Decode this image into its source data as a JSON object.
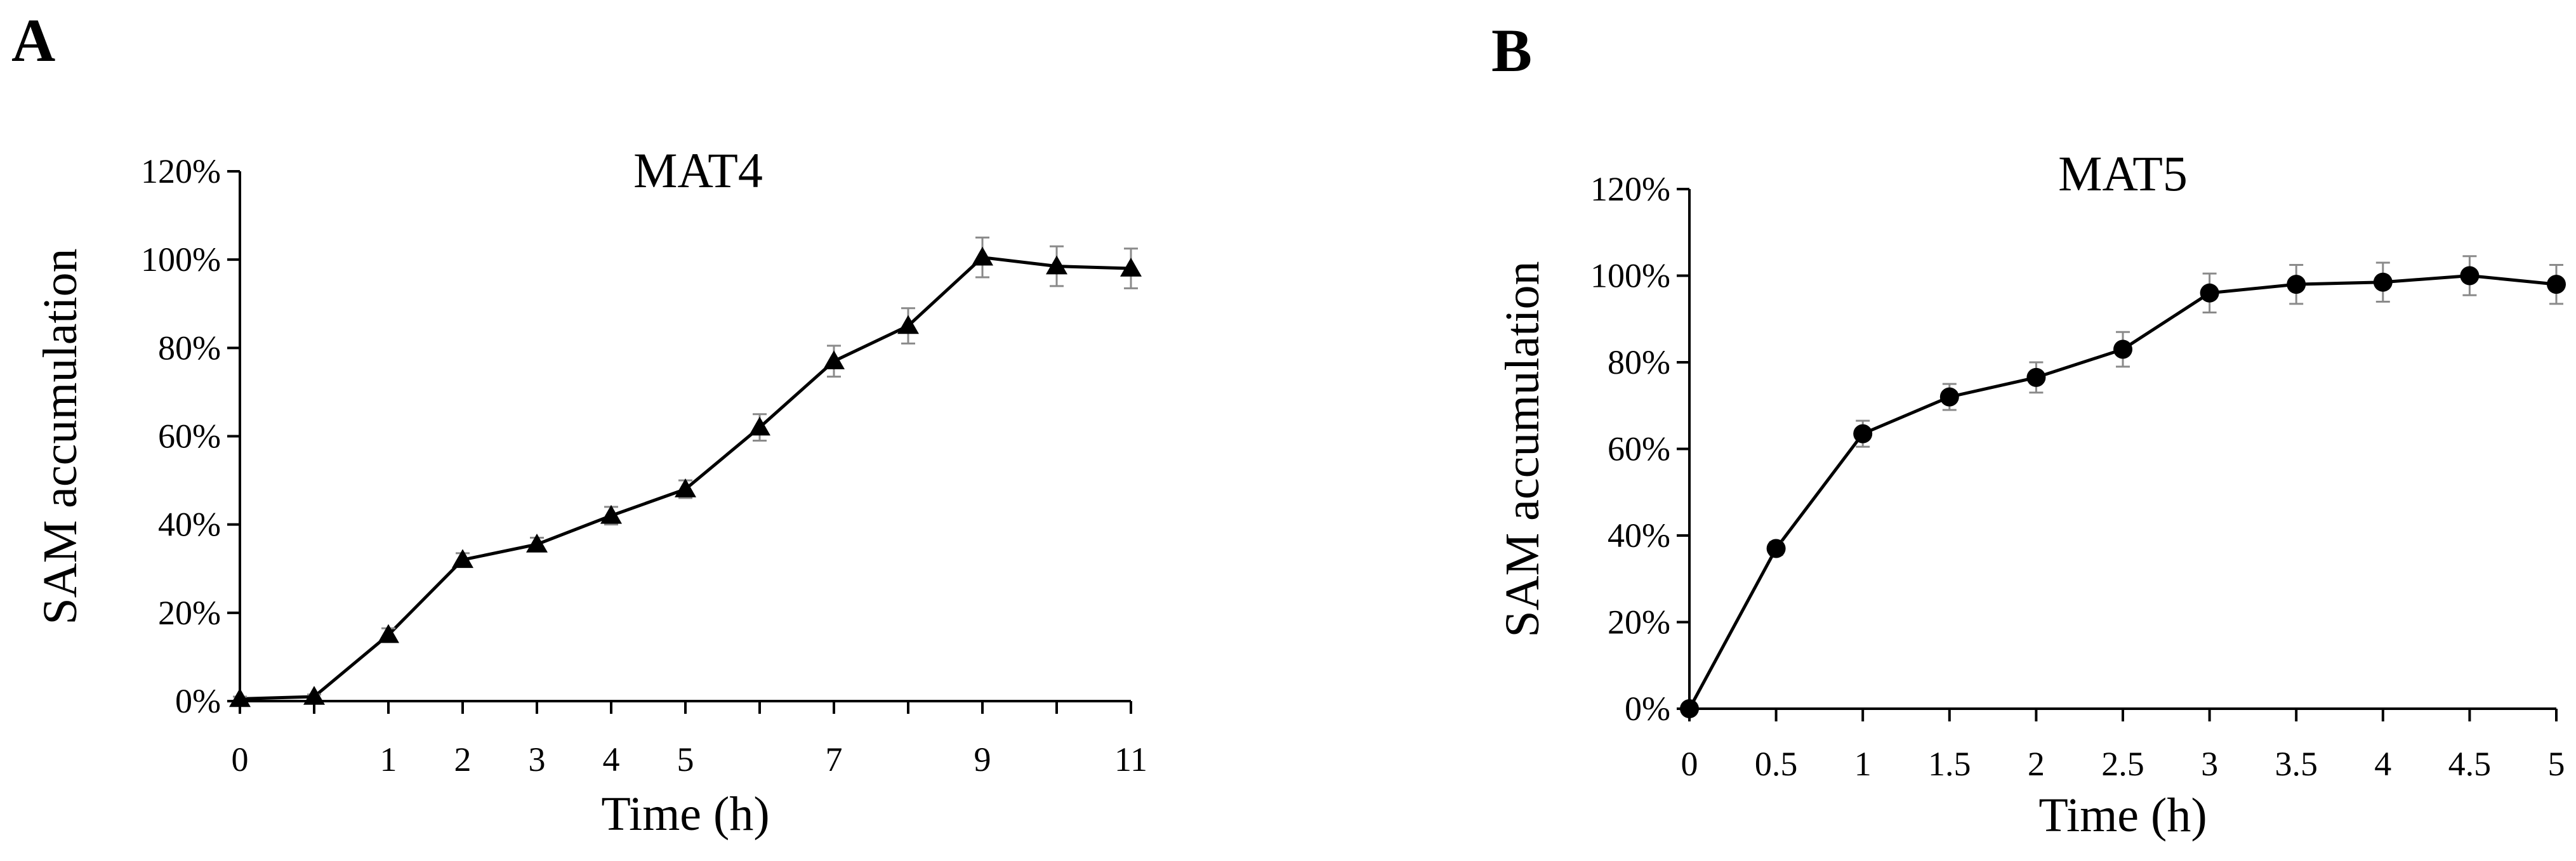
{
  "figure": {
    "panel_a_label": "A",
    "panel_b_label": "B"
  },
  "chart_data": [
    {
      "type": "line",
      "panel": "A",
      "title": "MAT4",
      "xlabel": "Time (h)",
      "ylabel": "SAM accumulation",
      "x_categories": [
        "0",
        "0.5",
        "1",
        "2",
        "3",
        "4",
        "5",
        "6",
        "7",
        "8",
        "9",
        "10",
        "11"
      ],
      "x_tick_labels": [
        "0",
        "",
        "1",
        "2",
        "3",
        "4",
        "5",
        "",
        "7",
        "",
        "9",
        "",
        "11"
      ],
      "y_ticks": [
        0,
        20,
        40,
        60,
        80,
        100,
        120
      ],
      "y_tick_labels": [
        "0%",
        "20%",
        "40%",
        "60%",
        "80%",
        "100%",
        "120%"
      ],
      "ylim": [
        0,
        120
      ],
      "marker": "triangle",
      "color": "#000000",
      "error_color": "#8a8a8a",
      "series": [
        {
          "name": "MAT4",
          "values": [
            0.5,
            1,
            15,
            32,
            35.5,
            42,
            48,
            62,
            77,
            85,
            100.5,
            98.5,
            98
          ],
          "errors": [
            0.5,
            0.5,
            1.5,
            1.5,
            1.5,
            2,
            2,
            3,
            3.5,
            4,
            4.5,
            4.5,
            4.5
          ]
        }
      ]
    },
    {
      "type": "line",
      "panel": "B",
      "title": "MAT5",
      "xlabel": "Time (h)",
      "ylabel": "SAM accumulation",
      "x_categories": [
        "0",
        "0.5",
        "1",
        "1.5",
        "2",
        "2.5",
        "3",
        "3.5",
        "4",
        "4.5",
        "5"
      ],
      "x_tick_labels": [
        "0",
        "0.5",
        "1",
        "1.5",
        "2",
        "2.5",
        "3",
        "3.5",
        "4",
        "4.5",
        "5"
      ],
      "y_ticks": [
        0,
        20,
        40,
        60,
        80,
        100,
        120
      ],
      "y_tick_labels": [
        "0%",
        "20%",
        "40%",
        "60%",
        "80%",
        "100%",
        "120%"
      ],
      "ylim": [
        0,
        120
      ],
      "marker": "circle",
      "color": "#000000",
      "error_color": "#8a8a8a",
      "series": [
        {
          "name": "MAT5",
          "values": [
            0,
            37,
            63.5,
            72,
            76.5,
            83,
            96,
            98,
            98.5,
            100,
            98
          ],
          "errors": [
            0,
            1.5,
            3,
            3,
            3.5,
            4,
            4.5,
            4.5,
            4.5,
            4.5,
            4.5
          ]
        }
      ]
    }
  ]
}
